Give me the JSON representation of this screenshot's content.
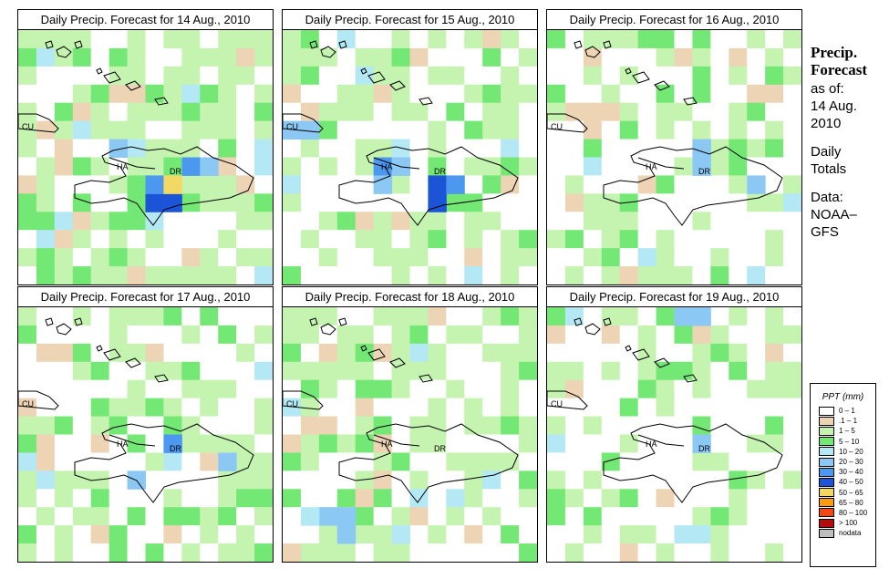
{
  "panels": [
    {
      "title": "Daily Precip. Forecast for  14 Aug., 2010",
      "seed": 11,
      "wet": 0.72,
      "heavy": [
        [
          9,
          7,
          "40–50"
        ],
        [
          9,
          8,
          "40–50"
        ],
        [
          8,
          7,
          "30–40"
        ],
        [
          7,
          9,
          "30–40"
        ],
        [
          7,
          10,
          "20–30"
        ],
        [
          8,
          8,
          "50–65"
        ],
        [
          6,
          5,
          "20–30"
        ]
      ]
    },
    {
      "title": "Daily Precip. Forecast for  15 Aug., 2010",
      "seed": 23,
      "wet": 0.6,
      "heavy": [
        [
          7,
          5,
          "30–40"
        ],
        [
          8,
          5,
          "20–30"
        ],
        [
          7,
          6,
          "20–30"
        ],
        [
          8,
          8,
          "40–50"
        ],
        [
          9,
          8,
          "40–50"
        ],
        [
          8,
          9,
          "30–40"
        ],
        [
          5,
          0,
          "20–30"
        ],
        [
          5,
          1,
          "20–30"
        ]
      ]
    },
    {
      "title": "Daily Precip. Forecast for  16 Aug., 2010",
      "seed": 37,
      "wet": 0.45,
      "heavy": [
        [
          7,
          8,
          "20–30"
        ],
        [
          6,
          8,
          "20–30"
        ],
        [
          8,
          11,
          "20–30"
        ]
      ]
    },
    {
      "title": "Daily Precip. Forecast for  17 Aug., 2010",
      "seed": 41,
      "wet": 0.55,
      "heavy": [
        [
          7,
          8,
          "30–40"
        ],
        [
          8,
          11,
          "20–30"
        ],
        [
          9,
          6,
          "20–30"
        ]
      ]
    },
    {
      "title": "Daily Precip. Forecast for  18 Aug., 2010",
      "seed": 53,
      "wet": 0.62,
      "heavy": [
        [
          11,
          2,
          "20–30"
        ],
        [
          11,
          3,
          "20–30"
        ],
        [
          12,
          3,
          "20–30"
        ],
        [
          11,
          1,
          "10–20"
        ],
        [
          12,
          6,
          "10–20"
        ]
      ]
    },
    {
      "title": "Daily Precip. Forecast for  19 Aug., 2010",
      "seed": 67,
      "wet": 0.4,
      "heavy": [
        [
          0,
          7,
          "20–30"
        ],
        [
          0,
          8,
          "20–30"
        ],
        [
          7,
          8,
          "20–30"
        ]
      ]
    }
  ],
  "country_labels": {
    "cuba": "CU",
    "haiti": "HA",
    "dominican_republic": "DR"
  },
  "sidebar": {
    "title_line1": "Precip.",
    "title_line2": "Forecast",
    "asof_label": "as of:",
    "date_line1": "14 Aug.",
    "date_line2": "2010",
    "totals_line1": "Daily",
    "totals_line2": "Totals",
    "source_line1": "Data:",
    "source_line2": "NOAA–",
    "source_line3": "GFS"
  },
  "legend": {
    "title": "PPT (mm)",
    "items": [
      {
        "label": "0 – 1",
        "color": "#ffffff"
      },
      {
        "label": ".1 – 1",
        "color": "#ecd4b4"
      },
      {
        "label": "1 – 5",
        "color": "#c4f4b0"
      },
      {
        "label": "5 – 10",
        "color": "#74e874"
      },
      {
        "label": "10 – 20",
        "color": "#b4e8f4"
      },
      {
        "label": "20 – 30",
        "color": "#8cc8f4"
      },
      {
        "label": "30 – 40",
        "color": "#4c98f0"
      },
      {
        "label": "40 – 50",
        "color": "#1c54d8"
      },
      {
        "label": "50 – 65",
        "color": "#f4d864"
      },
      {
        "label": "65 – 80",
        "color": "#fc9c0c"
      },
      {
        "label": "80 – 100",
        "color": "#f04818"
      },
      {
        "label": "> 100",
        "color": "#b40c0c"
      },
      {
        "label": "nodata",
        "color": "#bebebe"
      }
    ]
  }
}
